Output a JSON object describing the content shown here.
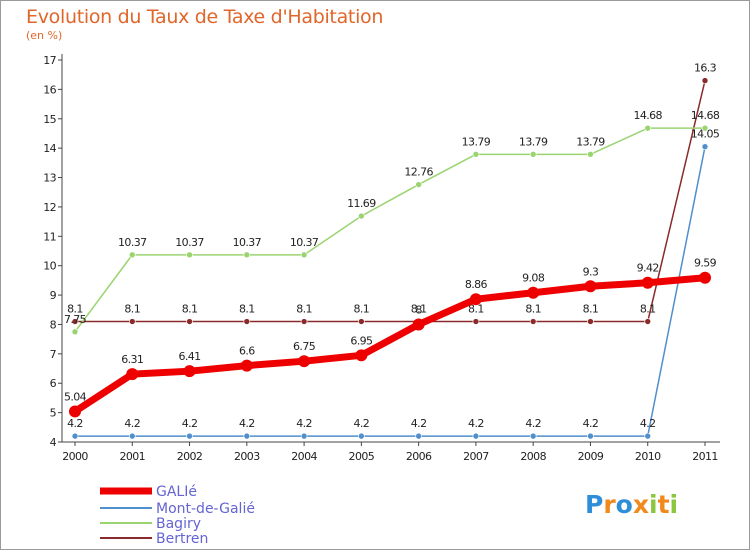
{
  "chart_data": {
    "type": "line",
    "title": "Evolution du Taux de Taxe d'Habitation",
    "subtitle": "(en %)",
    "x": [
      "2000",
      "2001",
      "2002",
      "2003",
      "2004",
      "2005",
      "2006",
      "2007",
      "2008",
      "2009",
      "2010",
      "2011"
    ],
    "ylim": [
      4,
      17
    ],
    "yticks": [
      4,
      5,
      6,
      7,
      8,
      9,
      10,
      11,
      12,
      13,
      14,
      15,
      16,
      17
    ],
    "grid": false,
    "legend_position": "bottom-left",
    "series": [
      {
        "name": "GALIé",
        "color": "#ee0000",
        "values": [
          5.04,
          6.31,
          6.41,
          6.6,
          6.75,
          6.95,
          8,
          8.86,
          9.08,
          9.3,
          9.42,
          9.59
        ],
        "labels": [
          "5.04",
          "6.31",
          "6.41",
          "6.6",
          "6.75",
          "6.95",
          "8",
          "8.86",
          "9.08",
          "9.3",
          "9.42",
          "9.59"
        ]
      },
      {
        "name": "Mont-de-Galié",
        "color": "#4f8fcc",
        "values": [
          4.2,
          4.2,
          4.2,
          4.2,
          4.2,
          4.2,
          4.2,
          4.2,
          4.2,
          4.2,
          4.2,
          14.05
        ],
        "labels": [
          "4.2",
          "4.2",
          "4.2",
          "4.2",
          "4.2",
          "4.2",
          "4.2",
          "4.2",
          "4.2",
          "4.2",
          "4.2",
          "14.05"
        ]
      },
      {
        "name": "Bagiry",
        "color": "#9ad470",
        "values": [
          7.75,
          10.37,
          10.37,
          10.37,
          10.37,
          11.69,
          12.76,
          13.79,
          13.79,
          13.79,
          14.68,
          14.68
        ],
        "labels": [
          "7.75",
          "10.37",
          "10.37",
          "10.37",
          "10.37",
          "11.69",
          "12.76",
          "13.79",
          "13.79",
          "13.79",
          "14.68",
          "14.68"
        ]
      },
      {
        "name": "Bertren",
        "color": "#8a2a2a",
        "values": [
          8.1,
          8.1,
          8.1,
          8.1,
          8.1,
          8.1,
          8.1,
          8.1,
          8.1,
          8.1,
          8.1,
          16.3
        ],
        "labels": [
          "8.1",
          "8.1",
          "8.1",
          "8.1",
          "8.1",
          "8.1",
          "8.1",
          "8.1",
          "8.1",
          "8.1",
          "8.1",
          "16.3"
        ]
      }
    ]
  },
  "logo": {
    "letters": [
      {
        "char": "P",
        "color": "#2e8fd8"
      },
      {
        "char": "r",
        "color": "#f08a1c"
      },
      {
        "char": "o",
        "color": "#2e8fd8"
      },
      {
        "char": "x",
        "color": "#f08a1c"
      },
      {
        "char": "i",
        "color": "#8cc63f"
      },
      {
        "char": "t",
        "color": "#f08a1c"
      },
      {
        "char": "i",
        "color": "#8cc63f"
      }
    ]
  }
}
